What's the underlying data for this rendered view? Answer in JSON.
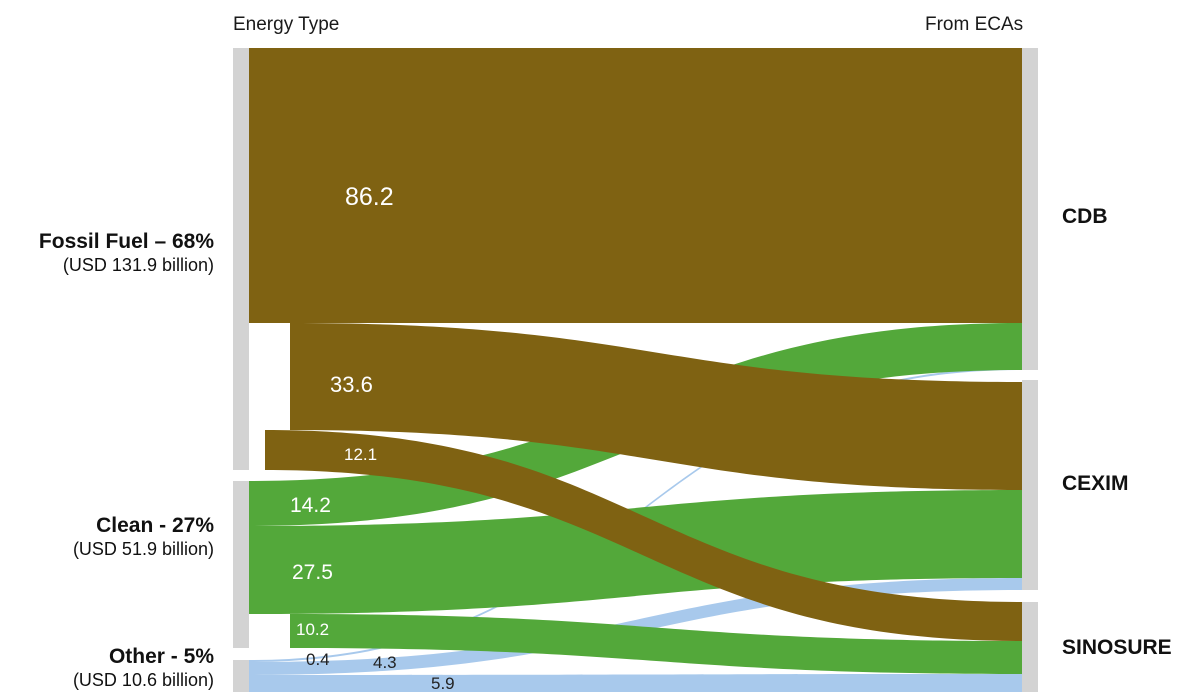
{
  "chart_data": {
    "type": "sankey",
    "left_header": "Energy Type",
    "right_header": "From ECAs",
    "sources": [
      {
        "id": "fossil",
        "label": "Fossil Fuel – 68%",
        "sublabel": "(USD 131.9 billion)",
        "color": "#7f6212",
        "total": 131.9
      },
      {
        "id": "clean",
        "label": "Clean - 27%",
        "sublabel": "(USD 51.9 billion)",
        "color": "#53a83a",
        "total": 51.9
      },
      {
        "id": "other",
        "label": "Other - 5%",
        "sublabel": "(USD 10.6 billion)",
        "color": "#a8c9ec",
        "total": 10.6
      }
    ],
    "targets": [
      {
        "id": "cdb",
        "label": "CDB"
      },
      {
        "id": "cexim",
        "label": "CEXIM"
      },
      {
        "id": "sinosure",
        "label": "SINOSURE"
      }
    ],
    "flows": [
      {
        "source": "fossil",
        "target": "cdb",
        "value": 86.2,
        "label": "86.2"
      },
      {
        "source": "fossil",
        "target": "cexim",
        "value": 33.6,
        "label": "33.6"
      },
      {
        "source": "fossil",
        "target": "sinosure",
        "value": 12.1,
        "label": "12.1"
      },
      {
        "source": "clean",
        "target": "cdb",
        "value": 14.2,
        "label": "14.2"
      },
      {
        "source": "clean",
        "target": "cexim",
        "value": 27.5,
        "label": "27.5"
      },
      {
        "source": "clean",
        "target": "sinosure",
        "value": 10.2,
        "label": "10.2"
      },
      {
        "source": "other",
        "target": "cdb",
        "value": 0.4,
        "label": "0.4"
      },
      {
        "source": "other",
        "target": "cexim",
        "value": 4.3,
        "label": "4.3"
      },
      {
        "source": "other",
        "target": "sinosure",
        "value": 5.9,
        "label": "5.9"
      }
    ],
    "node_bar_color": "#d3d3d3"
  }
}
